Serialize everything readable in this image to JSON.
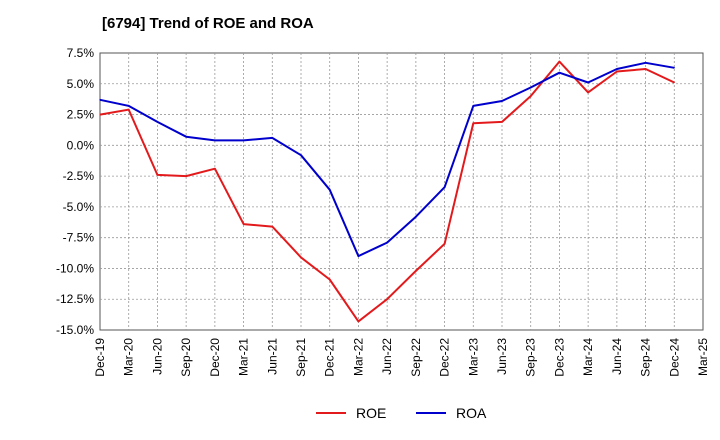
{
  "chart_data": {
    "type": "line",
    "title": "[6794]  Trend of ROE and ROA",
    "xlabel": "",
    "ylabel": "",
    "ylim": [
      -15.0,
      7.5
    ],
    "yticks": [
      "7.5%",
      "5.0%",
      "2.5%",
      "0.0%",
      "-2.5%",
      "-5.0%",
      "-7.5%",
      "-10.0%",
      "-12.5%",
      "-15.0%"
    ],
    "ytick_values": [
      7.5,
      5.0,
      2.5,
      0.0,
      -2.5,
      -5.0,
      -7.5,
      -10.0,
      -12.5,
      -15.0
    ],
    "categories": [
      "Dec-19",
      "Mar-20",
      "Jun-20",
      "Sep-20",
      "Dec-20",
      "Mar-21",
      "Jun-21",
      "Sep-21",
      "Dec-21",
      "Mar-22",
      "Jun-22",
      "Sep-22",
      "Dec-22",
      "Mar-23",
      "Jun-23",
      "Sep-23",
      "Dec-23",
      "Mar-24",
      "Jun-24",
      "Sep-24",
      "Dec-24",
      "Mar-25"
    ],
    "grid": true,
    "legend_position": "bottom-center",
    "series": [
      {
        "name": "ROE",
        "color": "#e31a1c",
        "values": [
          2.5,
          2.9,
          -2.4,
          -2.5,
          -1.9,
          -6.4,
          -6.6,
          -9.1,
          -10.9,
          -14.3,
          -12.5,
          -10.2,
          -8.0,
          1.8,
          1.9,
          4.0,
          6.8,
          4.3,
          6.0,
          6.2,
          5.1,
          null
        ]
      },
      {
        "name": "ROA",
        "color": "#0000cc",
        "values": [
          3.7,
          3.2,
          1.9,
          0.7,
          0.4,
          0.4,
          0.6,
          -0.8,
          -3.6,
          -9.0,
          -7.9,
          -5.8,
          -3.4,
          3.2,
          3.6,
          4.7,
          5.9,
          5.1,
          6.2,
          6.7,
          6.3,
          null
        ]
      }
    ]
  }
}
